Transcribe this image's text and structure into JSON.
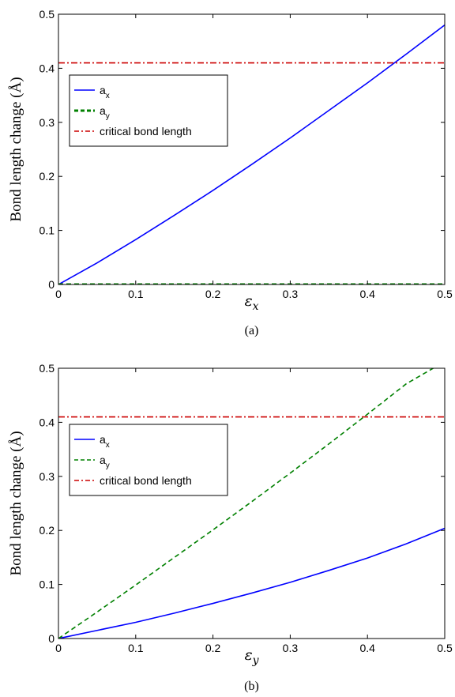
{
  "chart_data": [
    {
      "type": "line",
      "panel_label": "(a)",
      "xlabel_symbol": "ε",
      "xlabel_sub": "x",
      "ylabel": "Bond length change (Å)",
      "xlim": [
        0,
        0.5
      ],
      "ylim": [
        0,
        0.5
      ],
      "xticks": [
        "0",
        "0.1",
        "0.2",
        "0.3",
        "0.4",
        "0.5"
      ],
      "yticks": [
        "0",
        "0.1",
        "0.2",
        "0.3",
        "0.4",
        "0.5"
      ],
      "grid": false,
      "legend_position": "upper-left",
      "series": [
        {
          "name": "a_x",
          "label_main": "a",
          "label_sub": "x",
          "color": "#0000ff",
          "style": "solid",
          "x": [
            0,
            0.05,
            0.1,
            0.15,
            0.2,
            0.25,
            0.3,
            0.35,
            0.4,
            0.45,
            0.5
          ],
          "y": [
            0,
            0.04,
            0.083,
            0.128,
            0.174,
            0.222,
            0.271,
            0.322,
            0.373,
            0.426,
            0.48
          ]
        },
        {
          "name": "a_y",
          "label_main": "a",
          "label_sub": "y",
          "color": "#008000",
          "style": "dashed-bold",
          "x": [
            0,
            0.5
          ],
          "y": [
            0,
            0
          ]
        },
        {
          "name": "critical bond length",
          "label_main": "critical bond length",
          "label_sub": "",
          "color": "#cc0000",
          "style": "dashdot",
          "x": [
            0,
            0.5
          ],
          "y": [
            0.41,
            0.41
          ]
        }
      ]
    },
    {
      "type": "line",
      "panel_label": "(b)",
      "xlabel_symbol": "ε",
      "xlabel_sub": "y",
      "ylabel": "Bond length change (Å)",
      "xlim": [
        0,
        0.5
      ],
      "ylim": [
        0,
        0.5
      ],
      "xticks": [
        "0",
        "0.1",
        "0.2",
        "0.3",
        "0.4",
        "0.5"
      ],
      "yticks": [
        "0",
        "0.1",
        "0.2",
        "0.3",
        "0.4",
        "0.5"
      ],
      "grid": false,
      "legend_position": "upper-left",
      "series": [
        {
          "name": "a_x",
          "label_main": "a",
          "label_sub": "x",
          "color": "#0000ff",
          "style": "solid",
          "x": [
            0,
            0.05,
            0.1,
            0.15,
            0.2,
            0.25,
            0.3,
            0.35,
            0.4,
            0.45,
            0.5
          ],
          "y": [
            0,
            0.015,
            0.03,
            0.047,
            0.065,
            0.084,
            0.104,
            0.126,
            0.149,
            0.175,
            0.204
          ]
        },
        {
          "name": "a_y",
          "label_main": "a",
          "label_sub": "y",
          "color": "#008000",
          "style": "dashed",
          "x": [
            0,
            0.05,
            0.1,
            0.15,
            0.2,
            0.25,
            0.3,
            0.35,
            0.4,
            0.45,
            0.485
          ],
          "y": [
            0,
            0.049,
            0.099,
            0.15,
            0.201,
            0.253,
            0.306,
            0.36,
            0.415,
            0.471,
            0.5
          ]
        },
        {
          "name": "critical bond length",
          "label_main": "critical bond length",
          "label_sub": "",
          "color": "#cc0000",
          "style": "dashdot",
          "x": [
            0,
            0.5
          ],
          "y": [
            0.41,
            0.41
          ]
        }
      ]
    }
  ]
}
